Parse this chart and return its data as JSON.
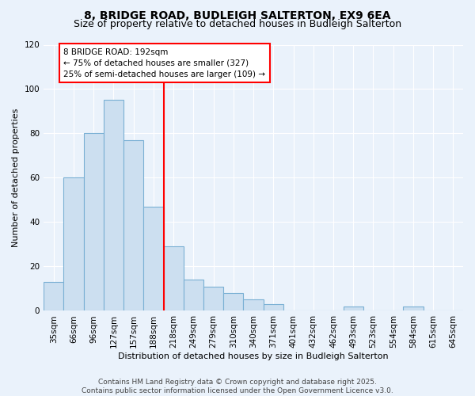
{
  "title1": "8, BRIDGE ROAD, BUDLEIGH SALTERTON, EX9 6EA",
  "title2": "Size of property relative to detached houses in Budleigh Salterton",
  "xlabel": "Distribution of detached houses by size in Budleigh Salterton",
  "ylabel": "Number of detached properties",
  "bar_color": "#ccdff0",
  "bar_edge_color": "#7ab0d4",
  "background_color": "#eaf2fb",
  "categories": [
    "35sqm",
    "66sqm",
    "96sqm",
    "127sqm",
    "157sqm",
    "188sqm",
    "218sqm",
    "249sqm",
    "279sqm",
    "310sqm",
    "340sqm",
    "371sqm",
    "401sqm",
    "432sqm",
    "462sqm",
    "493sqm",
    "523sqm",
    "554sqm",
    "584sqm",
    "615sqm",
    "645sqm"
  ],
  "values": [
    13,
    60,
    80,
    95,
    77,
    47,
    29,
    14,
    11,
    8,
    5,
    3,
    0,
    0,
    0,
    2,
    0,
    0,
    2,
    0,
    0
  ],
  "red_line_index": 5.5,
  "annotation_text_line1": "8 BRIDGE ROAD: 192sqm",
  "annotation_text_line2": "← 75% of detached houses are smaller (327)",
  "annotation_text_line3": "25% of semi-detached houses are larger (109) →",
  "annotation_box_color": "white",
  "annotation_box_edge": "red",
  "ylim": [
    0,
    120
  ],
  "yticks": [
    0,
    20,
    40,
    60,
    80,
    100,
    120
  ],
  "footnote": "Contains HM Land Registry data © Crown copyright and database right 2025.\nContains public sector information licensed under the Open Government Licence v3.0.",
  "title_fontsize": 10,
  "subtitle_fontsize": 9,
  "axis_label_fontsize": 8,
  "tick_fontsize": 7.5,
  "footnote_fontsize": 6.5
}
